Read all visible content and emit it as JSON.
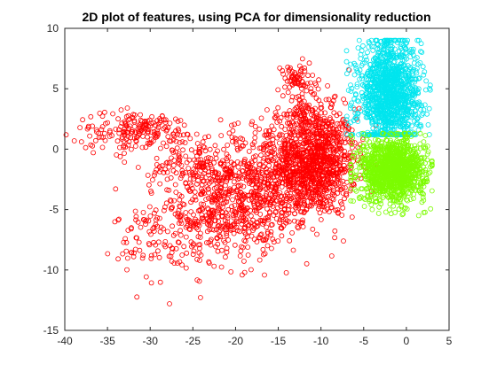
{
  "chart_data": {
    "type": "scatter",
    "title": "2D plot of features, using PCA for dimensionality reduction",
    "xlabel": "",
    "ylabel": "",
    "xlim": [
      -40,
      5
    ],
    "ylim": [
      -15,
      10
    ],
    "xticks": [
      -40,
      -35,
      -30,
      -25,
      -20,
      -15,
      -10,
      -5,
      0,
      5
    ],
    "yticks": [
      -15,
      -10,
      -5,
      0,
      5,
      10
    ],
    "grid": false,
    "marker": "open-circle",
    "series": [
      {
        "color": "#ff0000",
        "clusters": [
          {
            "cx": -10.5,
            "cy": -1.0,
            "sx": 2.3,
            "sy": 2.2,
            "n": 950
          },
          {
            "cx": -16.0,
            "cy": -2.5,
            "sx": 3.5,
            "sy": 2.2,
            "n": 520
          },
          {
            "cx": -21.0,
            "cy": -5.0,
            "sx": 3.0,
            "sy": 2.2,
            "n": 380
          },
          {
            "cx": -28.0,
            "cy": -7.0,
            "sx": 3.0,
            "sy": 2.0,
            "n": 150
          },
          {
            "cx": -31.0,
            "cy": 1.5,
            "sx": 3.8,
            "sy": 0.8,
            "n": 210
          },
          {
            "cx": -25.0,
            "cy": -1.5,
            "sx": 2.5,
            "sy": 0.9,
            "n": 120
          },
          {
            "cx": -13.0,
            "cy": 5.8,
            "sx": 1.2,
            "sy": 0.6,
            "n": 60
          },
          {
            "cx": -12.0,
            "cy": 3.0,
            "sx": 1.4,
            "sy": 1.2,
            "n": 90
          }
        ]
      },
      {
        "color": "#00e5ee",
        "clusters": [
          {
            "cx": -2.0,
            "cy": 4.5,
            "sx": 1.8,
            "sy": 2.2,
            "n": 1300
          }
        ]
      },
      {
        "color": "#7cfc00",
        "clusters": [
          {
            "cx": -1.6,
            "cy": -1.7,
            "sx": 1.9,
            "sy": 1.3,
            "n": 1300
          }
        ]
      }
    ]
  }
}
